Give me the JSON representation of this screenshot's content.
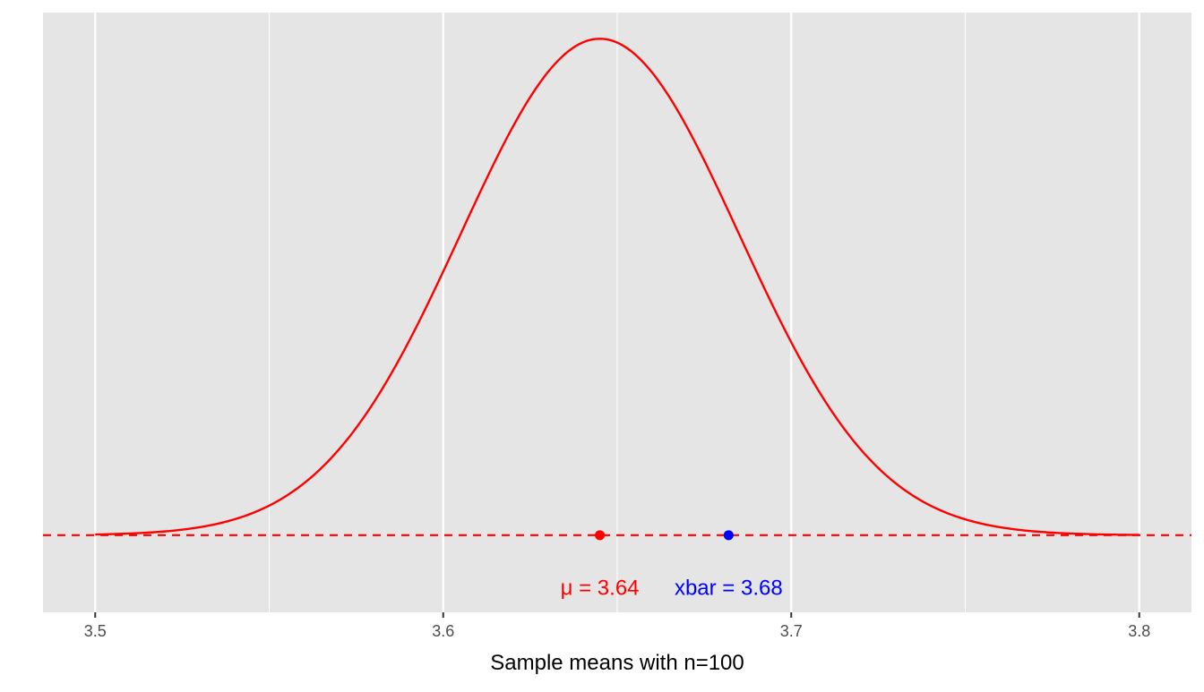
{
  "chart_data": {
    "type": "line",
    "title": "",
    "xlabel": "Sample means with n=100",
    "ylabel": "",
    "xlim": [
      3.485,
      3.815
    ],
    "ylim": [
      -1.55,
      10.5
    ],
    "x_ticks": [
      3.5,
      3.6,
      3.7,
      3.8
    ],
    "x_tick_labels": [
      "3.5",
      "3.6",
      "3.7",
      "3.8"
    ],
    "x_minor_ticks": [
      3.55,
      3.65,
      3.75
    ],
    "grid": "vertical",
    "curve": {
      "name": "Sampling distribution",
      "distribution": "normal",
      "mean": 3.645,
      "sd": 0.04,
      "x_range": [
        3.5,
        3.8
      ],
      "color": "#ff0000"
    },
    "baseline": {
      "y": 0,
      "style": "dashed",
      "color": "#ff0000"
    },
    "points": [
      {
        "name": "mu",
        "x": 3.645,
        "y": 0,
        "color": "#ff0000",
        "label": "μ = 3.64",
        "label_y": -1.04
      },
      {
        "name": "xbar",
        "x": 3.682,
        "y": 0,
        "color": "#0000ff",
        "label": "xbar = 3.68",
        "label_y": -1.04
      }
    ],
    "panel_background": "#e5e5e5"
  }
}
